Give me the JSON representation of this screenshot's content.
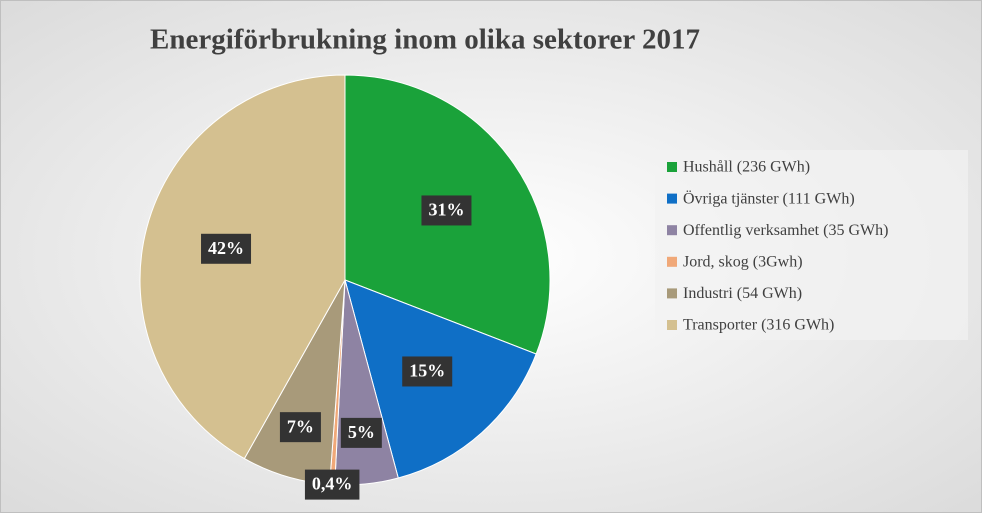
{
  "chart_data": {
    "type": "pie",
    "title": "Energiförbrukning inom olika sektorer 2017",
    "categories": [
      "Hushåll (236 GWh)",
      "Övriga tjänster (111 GWh)",
      "Offentlig verksamhet (35 GWh)",
      "Jord, skog (3Gwh)",
      "Industri (54 GWh)",
      "Transporter (316 GWh)"
    ],
    "values": [
      31,
      15,
      5,
      0.4,
      7,
      42
    ],
    "value_labels": [
      "31%",
      "15%",
      "5%",
      "0,4%",
      "7%",
      "42%"
    ],
    "colors": [
      "#1aa23a",
      "#0f6fc6",
      "#8e83a3",
      "#f0a878",
      "#a89a7a",
      "#d4c090"
    ],
    "legend": "right"
  }
}
